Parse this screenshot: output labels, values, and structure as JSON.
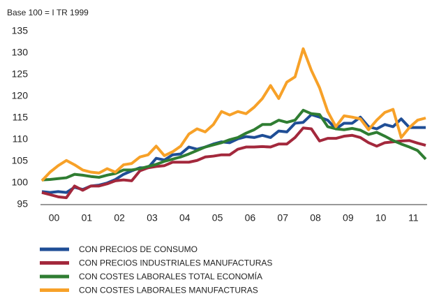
{
  "chart_data": {
    "type": "line",
    "subtitle": "Base 100 = I TR 1999",
    "categories": [
      null,
      "00",
      null,
      null,
      null,
      "01",
      null,
      null,
      null,
      "02",
      null,
      null,
      null,
      "03",
      null,
      null,
      null,
      "04",
      null,
      null,
      null,
      "05",
      null,
      null,
      null,
      "06",
      null,
      null,
      null,
      "07",
      null,
      null,
      null,
      "08",
      null,
      null,
      null,
      "09",
      null,
      null,
      null,
      "10",
      null,
      null,
      null,
      "11",
      null,
      null
    ],
    "ylim": [
      95,
      135
    ],
    "yticks": [
      95,
      100,
      105,
      110,
      115,
      120,
      125,
      130,
      135
    ],
    "grid": false,
    "legend": "bottom",
    "series": [
      {
        "name": "CON PRECIOS DE CONSUMO",
        "color": "#1f4e96",
        "values": [
          98,
          97.8,
          98,
          97.8,
          99,
          98.5,
          99.3,
          99.5,
          100,
          100.8,
          102,
          102.8,
          103.5,
          103.5,
          105.7,
          105.3,
          106.5,
          106.7,
          108.3,
          107.8,
          108.3,
          109,
          109.5,
          109.3,
          110.2,
          110.7,
          110.5,
          111,
          110.5,
          112,
          111.8,
          113.8,
          114,
          115.8,
          115.2,
          114.5,
          112.5,
          113.8,
          113.8,
          115.2,
          113,
          112.5,
          113.5,
          113,
          114.8,
          112.8,
          112.8,
          112.8
        ]
      },
      {
        "name": "CON PRECIOS INDUSTRIALES MANUFACTURAS",
        "color": "#a3283c",
        "values": [
          97.8,
          97.3,
          96.8,
          96.6,
          99.3,
          98.3,
          99.3,
          99.3,
          99.8,
          100.5,
          100.7,
          100.5,
          102.8,
          103.5,
          103.8,
          104,
          104.8,
          104.8,
          104.8,
          105.2,
          106,
          106.2,
          106.5,
          106.5,
          107.8,
          108.3,
          108.3,
          108.4,
          108.3,
          109,
          109,
          110.5,
          112.7,
          112.5,
          109.7,
          110.3,
          110.3,
          110.8,
          111,
          110.5,
          109.3,
          108.5,
          109.3,
          109.5,
          109.7,
          109.8,
          109.2,
          108.7
        ]
      },
      {
        "name": "CON COSTES LABORALES TOTAL ECONOMÍA",
        "color": "#2f7d32",
        "values": [
          100.7,
          100.8,
          101,
          101.2,
          102,
          101.8,
          101.5,
          101.3,
          101.8,
          102.2,
          103,
          103,
          103.3,
          103.8,
          104.3,
          105,
          105.5,
          106,
          106.7,
          107.5,
          108.3,
          108.8,
          109.3,
          110,
          110.5,
          111.5,
          112.3,
          113.5,
          113.5,
          114.5,
          114,
          114.5,
          116.8,
          116,
          115.8,
          113,
          112.5,
          112.3,
          112.6,
          112.2,
          111.2,
          111.7,
          110.8,
          109.8,
          109,
          108.3,
          107.5,
          105.5
        ]
      },
      {
        "name": "CON COSTES LABORALES MANUFACTURAS",
        "color": "#f7a128",
        "values": [
          100.5,
          102.5,
          104,
          105.2,
          104.2,
          103,
          102.5,
          102.3,
          103.3,
          102.5,
          104.2,
          104.5,
          106,
          106.5,
          108.5,
          106.3,
          107.2,
          108.5,
          111.3,
          112.5,
          111.8,
          113.5,
          116.5,
          115.7,
          116.5,
          116,
          117.5,
          119.5,
          122.5,
          119.5,
          123.3,
          124.5,
          131,
          126,
          122,
          116.5,
          113,
          115.5,
          115.2,
          114.8,
          112.3,
          114.5,
          116.3,
          117,
          110.5,
          112.8,
          114.5,
          115
        ]
      }
    ]
  }
}
